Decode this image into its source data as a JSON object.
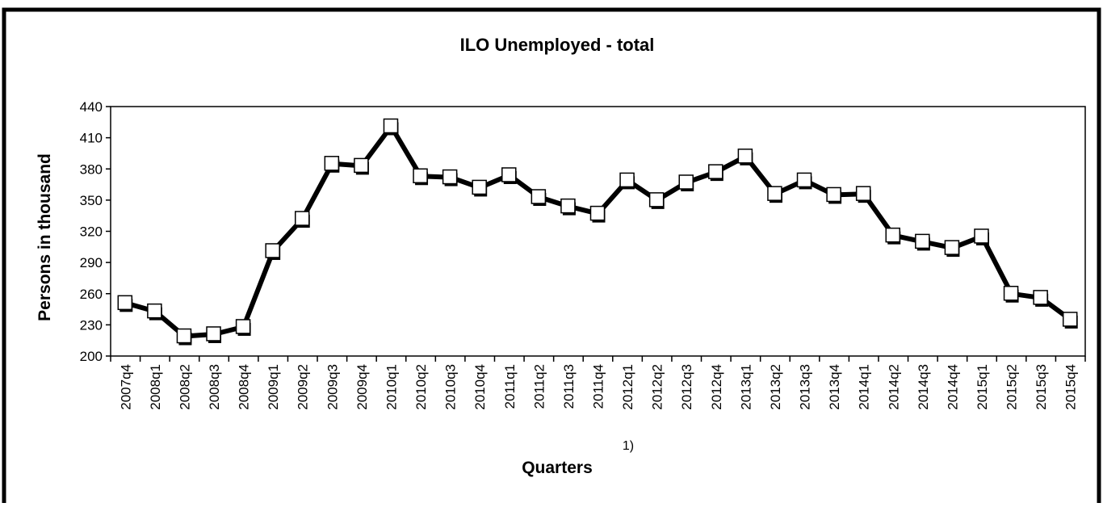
{
  "chart_data": {
    "type": "line",
    "title": "ILO Unemployed  - total",
    "ylabel": "Persons in thousand",
    "xlabel": "Quarters",
    "footnote_marker": "1)",
    "ylim": [
      200,
      440
    ],
    "yticks": [
      200,
      230,
      260,
      290,
      320,
      350,
      380,
      410,
      440
    ],
    "grid": false,
    "legend": "none",
    "marker": "square",
    "line_color": "#000000",
    "marker_fill": "#ffffff",
    "categories": [
      "2007q4",
      "2008q1",
      "2008q2",
      "2008q3",
      "2008q4",
      "2009q1",
      "2009q2",
      "2009q3",
      "2009q4",
      "2010q1",
      "2010q2",
      "2010q3",
      "2010q4",
      "2011q1",
      "2011q2",
      "2011q3",
      "2011q4",
      "2012q1",
      "2012q2",
      "2012q3",
      "2012q4",
      "2013q1",
      "2013q2",
      "2013q3",
      "2013q4",
      "2014q1",
      "2014q2",
      "2014q3",
      "2014q4",
      "2015q1",
      "2015q2",
      "2015q3",
      "2015q4"
    ],
    "series": [
      {
        "values": [
          251,
          243,
          219,
          221,
          228,
          301,
          332,
          385,
          383,
          421,
          373,
          372,
          362,
          374,
          353,
          344,
          337,
          369,
          350,
          367,
          377,
          392,
          356,
          369,
          355,
          356,
          316,
          310,
          304,
          315,
          260,
          256,
          235
        ]
      }
    ]
  }
}
